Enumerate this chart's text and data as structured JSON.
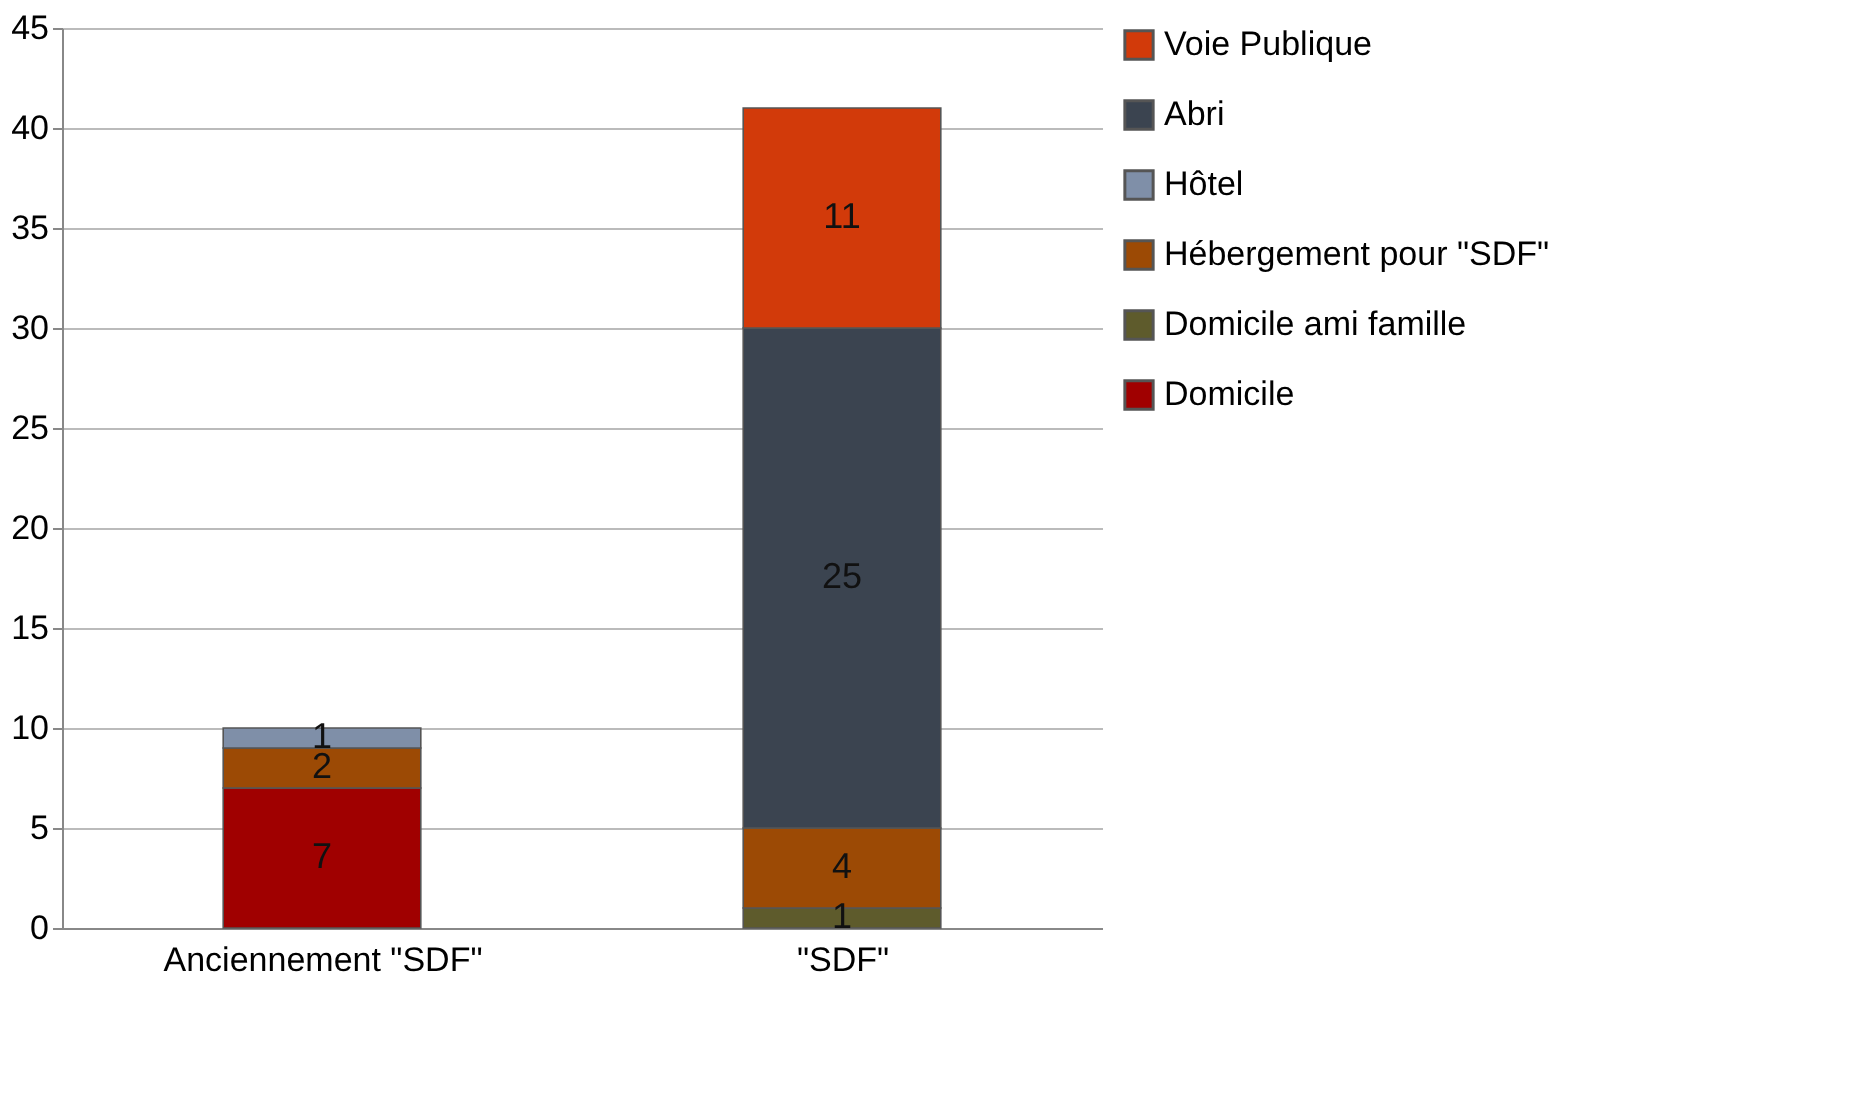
{
  "chart_data": {
    "type": "bar",
    "stacked": true,
    "categories": [
      "Anciennement \"SDF\"",
      "\"SDF\""
    ],
    "series": [
      {
        "name": "Domicile",
        "color": "#a00000",
        "values": [
          7,
          null
        ]
      },
      {
        "name": "Domicile ami famille",
        "color": "#5e5b2c",
        "values": [
          null,
          1
        ]
      },
      {
        "name": "Hébergement pour \"SDF\"",
        "color": "#9c4a05",
        "values": [
          2,
          4
        ]
      },
      {
        "name": "Hôtel",
        "color": "#7f8fa8",
        "values": [
          1,
          null
        ]
      },
      {
        "name": "Abri",
        "color": "#3b4450",
        "values": [
          null,
          25
        ]
      },
      {
        "name": "Voie Publique",
        "color": "#d23a0a",
        "values": [
          null,
          11
        ]
      }
    ],
    "ylim": [
      0,
      45
    ],
    "yticks": [
      0,
      5,
      10,
      15,
      20,
      25,
      30,
      35,
      40,
      45
    ],
    "grid": "y",
    "legend": "right",
    "data_labels": true
  }
}
